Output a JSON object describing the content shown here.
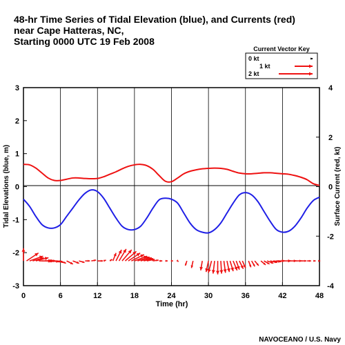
{
  "title_lines": [
    "48-hr Time Series of Tidal Elevation (blue), and Currents (red)",
    "near Cape Hatteras, NC,",
    "Starting 0000 UTC  19 Feb 2008"
  ],
  "credit": "NAVOCEANO / U.S. Navy",
  "key": {
    "title": "Current Vector Key",
    "entries": [
      {
        "label": "0 kt",
        "speed": 0
      },
      {
        "label": "1 kt",
        "speed": 1
      },
      {
        "label": "2 kt",
        "speed": 2
      }
    ]
  },
  "colors": {
    "tide": "#1f1fe6",
    "current": "#ee1111",
    "grid": "#000000"
  },
  "chart_data": {
    "type": "line",
    "xlabel": "Time (hr)",
    "ylabel_left": "Tidal Elevations (blue, m)",
    "ylabel_right": "Surface Current (red, kt)",
    "xlim": [
      0,
      48
    ],
    "ylim_left": [
      -3,
      3
    ],
    "ylim_right": [
      -4,
      4
    ],
    "x_ticks": [
      0,
      6,
      12,
      18,
      24,
      30,
      36,
      42,
      48
    ],
    "y_ticks_left": [
      -3,
      -2,
      -1,
      0,
      1,
      2,
      3
    ],
    "y_ticks_right": [
      -4,
      -2,
      0,
      2,
      4
    ],
    "grid": true,
    "series": [
      {
        "name": "Tidal Elevation",
        "axis": "left",
        "x": [
          0,
          1,
          2,
          3,
          4,
          5,
          6,
          7,
          8,
          9,
          10,
          11,
          12,
          13,
          14,
          15,
          16,
          17,
          18,
          19,
          20,
          21,
          22,
          23,
          24,
          25,
          26,
          27,
          28,
          29,
          30,
          31,
          32,
          33,
          34,
          35,
          36,
          37,
          38,
          39,
          40,
          41,
          42,
          43,
          44,
          45,
          46,
          47,
          48
        ],
        "y": [
          -0.38,
          -0.6,
          -0.9,
          -1.15,
          -1.25,
          -1.25,
          -1.15,
          -0.9,
          -0.65,
          -0.4,
          -0.2,
          -0.1,
          -0.15,
          -0.35,
          -0.65,
          -0.95,
          -1.2,
          -1.3,
          -1.3,
          -1.2,
          -0.95,
          -0.65,
          -0.4,
          -0.35,
          -0.38,
          -0.5,
          -0.8,
          -1.1,
          -1.3,
          -1.38,
          -1.4,
          -1.3,
          -1.1,
          -0.8,
          -0.5,
          -0.25,
          -0.18,
          -0.25,
          -0.45,
          -0.75,
          -1.05,
          -1.3,
          -1.38,
          -1.35,
          -1.2,
          -0.95,
          -0.65,
          -0.42,
          -0.32
        ]
      },
      {
        "name": "Current Speed",
        "axis": "right",
        "x": [
          0,
          1,
          2,
          3,
          4,
          5,
          6,
          7,
          8,
          9,
          10,
          11,
          12,
          13,
          14,
          15,
          16,
          17,
          18,
          19,
          20,
          21,
          22,
          23,
          24,
          25,
          26,
          27,
          28,
          29,
          30,
          31,
          32,
          33,
          34,
          35,
          36,
          37,
          38,
          39,
          40,
          41,
          42,
          43,
          44,
          45,
          46,
          47,
          48
        ],
        "y": [
          0.9,
          0.88,
          0.75,
          0.55,
          0.35,
          0.25,
          0.25,
          0.3,
          0.35,
          0.35,
          0.33,
          0.32,
          0.33,
          0.4,
          0.5,
          0.6,
          0.72,
          0.82,
          0.88,
          0.9,
          0.85,
          0.7,
          0.45,
          0.22,
          0.2,
          0.35,
          0.52,
          0.62,
          0.68,
          0.72,
          0.74,
          0.75,
          0.74,
          0.7,
          0.62,
          0.55,
          0.52,
          0.52,
          0.54,
          0.56,
          0.56,
          0.54,
          0.52,
          0.5,
          0.45,
          0.38,
          0.28,
          0.12,
          0.05
        ]
      }
    ],
    "current_vectors": [
      {
        "t": 0.0,
        "u": 0.0,
        "v": 0.8
      },
      {
        "t": 0.5,
        "u": 0.75,
        "v": 0.5
      },
      {
        "t": 1.0,
        "u": 0.85,
        "v": 0.3
      },
      {
        "t": 1.5,
        "u": 0.7,
        "v": 0.2
      },
      {
        "t": 2.0,
        "u": 0.8,
        "v": 0.2
      },
      {
        "t": 2.5,
        "u": 0.8,
        "v": 0.0
      },
      {
        "t": 3.0,
        "u": 0.7,
        "v": 0.0
      },
      {
        "t": 3.5,
        "u": 0.6,
        "v": 0.0
      },
      {
        "t": 4.0,
        "u": 0.5,
        "v": 0.0
      },
      {
        "t": 4.5,
        "u": 0.5,
        "v": -0.05
      },
      {
        "t": 5.0,
        "u": 0.45,
        "v": -0.05
      },
      {
        "t": 5.5,
        "u": 0.4,
        "v": -0.1
      },
      {
        "t": 6.0,
        "u": 0.35,
        "v": -0.15
      },
      {
        "t": 7.0,
        "u": 0.4,
        "v": -0.2
      },
      {
        "t": 8.0,
        "u": 0.4,
        "v": -0.15
      },
      {
        "t": 9.0,
        "u": 0.35,
        "v": -0.1
      },
      {
        "t": 10.0,
        "u": 0.3,
        "v": 0.0
      },
      {
        "t": 11.0,
        "u": 0.3,
        "v": 0.05
      },
      {
        "t": 12.0,
        "u": 0.35,
        "v": 0.0
      },
      {
        "t": 13.0,
        "u": 0.15,
        "v": 0.05
      },
      {
        "t": 14.0,
        "u": 0.15,
        "v": 0.1
      },
      {
        "t": 14.5,
        "u": 0.2,
        "v": 0.5
      },
      {
        "t": 15.0,
        "u": 0.35,
        "v": 0.7
      },
      {
        "t": 15.5,
        "u": 0.45,
        "v": 0.75
      },
      {
        "t": 16.0,
        "u": 0.6,
        "v": 0.7
      },
      {
        "t": 16.5,
        "u": 0.7,
        "v": 0.6
      },
      {
        "t": 17.0,
        "u": 0.75,
        "v": 0.5
      },
      {
        "t": 17.5,
        "u": 0.8,
        "v": 0.4
      },
      {
        "t": 18.0,
        "u": 0.8,
        "v": 0.3
      },
      {
        "t": 18.5,
        "u": 0.75,
        "v": 0.25
      },
      {
        "t": 19.0,
        "u": 0.7,
        "v": 0.2
      },
      {
        "t": 19.5,
        "u": 0.6,
        "v": 0.15
      },
      {
        "t": 20.0,
        "u": 0.5,
        "v": 0.1
      },
      {
        "t": 21.0,
        "u": 0.35,
        "v": 0.05
      },
      {
        "t": 22.0,
        "u": 0.2,
        "v": 0.0
      },
      {
        "t": 23.0,
        "u": 0.15,
        "v": 0.0
      },
      {
        "t": 24.0,
        "u": 0.1,
        "v": 0.0
      },
      {
        "t": 25.0,
        "u": 0.05,
        "v": -0.05
      },
      {
        "t": 26.5,
        "u": -0.1,
        "v": -0.3
      },
      {
        "t": 27.5,
        "u": -0.1,
        "v": -0.45
      },
      {
        "t": 29.0,
        "u": -0.1,
        "v": -0.6
      },
      {
        "t": 30.0,
        "u": -0.15,
        "v": -0.7
      },
      {
        "t": 30.5,
        "u": -0.2,
        "v": -0.75
      },
      {
        "t": 31.0,
        "u": -0.1,
        "v": -0.8
      },
      {
        "t": 31.5,
        "u": 0.0,
        "v": -0.85
      },
      {
        "t": 32.0,
        "u": 0.05,
        "v": -0.8
      },
      {
        "t": 32.5,
        "u": 0.1,
        "v": -0.75
      },
      {
        "t": 33.0,
        "u": 0.15,
        "v": -0.7
      },
      {
        "t": 33.5,
        "u": 0.2,
        "v": -0.65
      },
      {
        "t": 34.0,
        "u": 0.25,
        "v": -0.6
      },
      {
        "t": 34.5,
        "u": 0.2,
        "v": -0.55
      },
      {
        "t": 35.0,
        "u": 0.25,
        "v": -0.5
      },
      {
        "t": 35.5,
        "u": 0.2,
        "v": -0.45
      },
      {
        "t": 36.5,
        "u": 0.15,
        "v": -0.4
      },
      {
        "t": 37.0,
        "u": 0.2,
        "v": -0.35
      },
      {
        "t": 37.5,
        "u": 0.25,
        "v": -0.3
      },
      {
        "t": 38.5,
        "u": 0.3,
        "v": -0.25
      },
      {
        "t": 39.0,
        "u": 0.35,
        "v": -0.2
      },
      {
        "t": 39.5,
        "u": 0.4,
        "v": -0.15
      },
      {
        "t": 40.0,
        "u": 0.45,
        "v": -0.1
      },
      {
        "t": 40.5,
        "u": 0.5,
        "v": -0.05
      },
      {
        "t": 41.0,
        "u": 0.55,
        "v": 0.0
      },
      {
        "t": 42.0,
        "u": 0.55,
        "v": 0.0
      },
      {
        "t": 43.0,
        "u": 0.5,
        "v": 0.0
      },
      {
        "t": 44.0,
        "u": 0.45,
        "v": 0.0
      },
      {
        "t": 45.0,
        "u": 0.35,
        "v": 0.0
      },
      {
        "t": 46.0,
        "u": 0.25,
        "v": 0.0
      },
      {
        "t": 47.0,
        "u": 0.15,
        "v": 0.0
      },
      {
        "t": 48.0,
        "u": 0.05,
        "v": 0.0
      }
    ]
  }
}
